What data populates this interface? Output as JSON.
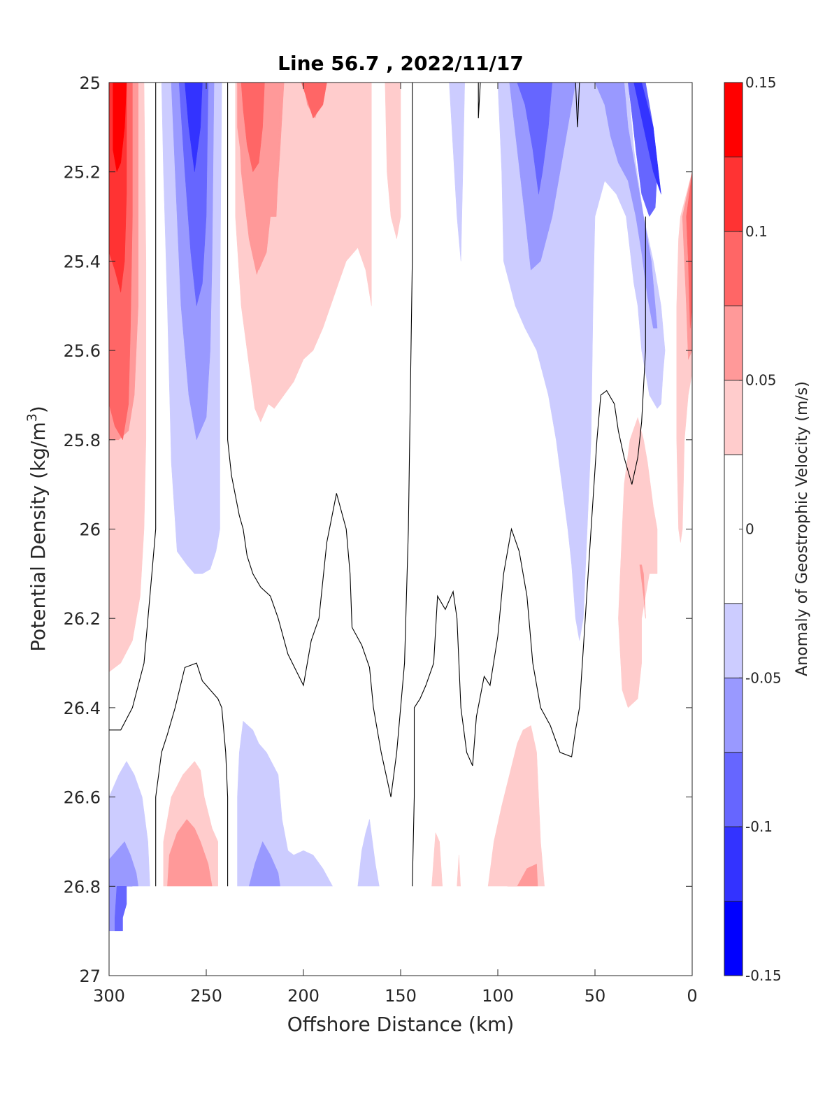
{
  "chart_data": {
    "type": "contour",
    "title": "Line 56.7 , 2022/11/17",
    "xlabel": "Offshore Distance (km)",
    "ylabel": "Potential Density (kg/m",
    "ylabel_sup": "3",
    "ylabel_end": ")",
    "xlim": [
      300,
      0
    ],
    "ylim": [
      25,
      27
    ],
    "x_reversed": true,
    "y_reversed": true,
    "xticks": [
      300,
      250,
      200,
      150,
      100,
      50,
      0
    ],
    "yticks": [
      25,
      25.2,
      25.4,
      25.6,
      25.8,
      26,
      26.2,
      26.4,
      26.6,
      26.8,
      27
    ],
    "xtick_labels": [
      "300",
      "250",
      "200",
      "150",
      "100",
      "50",
      "0"
    ],
    "ytick_labels": [
      "25",
      "25.2",
      "25.4",
      "25.6",
      "25.8",
      "26",
      "26.2",
      "26.4",
      "26.6",
      "26.8",
      "27"
    ],
    "colorbar": {
      "label": "Anomaly of Geostrophic Velocity (m/s)",
      "range": [
        -0.15,
        0.15
      ],
      "ticks": [
        0.15,
        0.1,
        0.05,
        0,
        -0.05,
        -0.1,
        -0.15
      ],
      "tick_labels": [
        "0.15",
        "0.1",
        "0.05",
        "0",
        "-0.05",
        "-0.1",
        "-0.15"
      ],
      "bands": [
        {
          "from": 0.125,
          "to": 0.15,
          "color": "#ff0000"
        },
        {
          "from": 0.1,
          "to": 0.125,
          "color": "#ff3333"
        },
        {
          "from": 0.075,
          "to": 0.1,
          "color": "#ff6666"
        },
        {
          "from": 0.05,
          "to": 0.075,
          "color": "#ff9999"
        },
        {
          "from": 0.025,
          "to": 0.05,
          "color": "#ffcccc"
        },
        {
          "from": -0.025,
          "to": 0.025,
          "color": "#ffffff"
        },
        {
          "from": -0.05,
          "to": -0.025,
          "color": "#ccccff"
        },
        {
          "from": -0.075,
          "to": -0.05,
          "color": "#9999ff"
        },
        {
          "from": -0.1,
          "to": -0.075,
          "color": "#6666ff"
        },
        {
          "from": -0.125,
          "to": -0.1,
          "color": "#3333ff"
        },
        {
          "from": -0.15,
          "to": -0.125,
          "color": "#0000ff"
        }
      ]
    },
    "zero_contours": [
      [
        [
          276,
          25.0
        ],
        [
          276,
          25.8
        ],
        [
          276,
          26.0
        ],
        [
          278,
          26.1
        ],
        [
          280,
          26.2
        ],
        [
          282,
          26.3
        ],
        [
          288,
          26.4
        ],
        [
          294,
          26.45
        ],
        [
          300,
          26.45
        ]
      ],
      [
        [
          239,
          25.0
        ],
        [
          239,
          25.6
        ],
        [
          239,
          25.8
        ],
        [
          237,
          25.88
        ],
        [
          233,
          25.97
        ],
        [
          231,
          26.0
        ],
        [
          229,
          26.06
        ],
        [
          226,
          26.1
        ],
        [
          222,
          26.13
        ],
        [
          217,
          26.15
        ],
        [
          213,
          26.2
        ],
        [
          208,
          26.28
        ],
        [
          200,
          26.35
        ],
        [
          196,
          26.25
        ],
        [
          192,
          26.2
        ],
        [
          188,
          26.03
        ],
        [
          183,
          25.92
        ],
        [
          178,
          26.0
        ],
        [
          176,
          26.1
        ],
        [
          175,
          26.22
        ],
        [
          170,
          26.26
        ],
        [
          166,
          26.31
        ],
        [
          164,
          26.4
        ],
        [
          160,
          26.5
        ],
        [
          155,
          26.6
        ],
        [
          152,
          26.5
        ],
        [
          148,
          26.3
        ],
        [
          146,
          26.0
        ],
        [
          145,
          25.7
        ],
        [
          144,
          25.4
        ],
        [
          144,
          25.0
        ]
      ],
      [
        [
          144,
          26.8
        ],
        [
          143,
          26.6
        ],
        [
          143,
          26.4
        ],
        [
          140,
          26.38
        ],
        [
          137,
          26.35
        ],
        [
          133,
          26.3
        ],
        [
          131,
          26.15
        ],
        [
          127,
          26.18
        ],
        [
          123,
          26.14
        ],
        [
          121,
          26.2
        ],
        [
          119,
          26.4
        ],
        [
          116,
          26.5
        ],
        [
          113,
          26.53
        ],
        [
          111,
          26.42
        ],
        [
          107,
          26.33
        ],
        [
          104,
          26.35
        ],
        [
          100,
          26.24
        ],
        [
          97,
          26.1
        ],
        [
          93,
          26.0
        ],
        [
          89,
          26.05
        ],
        [
          85,
          26.15
        ],
        [
          82,
          26.3
        ],
        [
          78,
          26.4
        ],
        [
          73,
          26.44
        ],
        [
          68,
          26.5
        ],
        [
          62,
          26.51
        ],
        [
          60,
          26.45
        ],
        [
          58,
          26.4
        ],
        [
          55,
          26.2
        ],
        [
          52,
          26.0
        ],
        [
          49,
          25.8
        ],
        [
          47,
          25.7
        ],
        [
          44,
          25.69
        ],
        [
          40,
          25.72
        ],
        [
          38,
          25.78
        ],
        [
          35,
          25.84
        ],
        [
          31,
          25.9
        ],
        [
          28,
          25.84
        ],
        [
          26,
          25.76
        ],
        [
          24,
          25.6
        ],
        [
          24,
          25.4
        ],
        [
          24,
          25.3
        ]
      ],
      [
        [
          276,
          26.8
        ],
        [
          276,
          26.6
        ],
        [
          273,
          26.5
        ],
        [
          270,
          26.46
        ],
        [
          266,
          26.4
        ],
        [
          261,
          26.31
        ],
        [
          255,
          26.3
        ],
        [
          252,
          26.34
        ],
        [
          248,
          26.36
        ],
        [
          244,
          26.38
        ],
        [
          242,
          26.4
        ],
        [
          240,
          26.5
        ],
        [
          239,
          26.6
        ],
        [
          239,
          26.8
        ]
      ],
      [
        [
          110,
          25.0
        ],
        [
          110,
          25.08
        ],
        [
          109,
          25.0
        ]
      ],
      [
        [
          60,
          25.0
        ],
        [
          59,
          25.1
        ],
        [
          58,
          25.0
        ]
      ]
    ]
  }
}
